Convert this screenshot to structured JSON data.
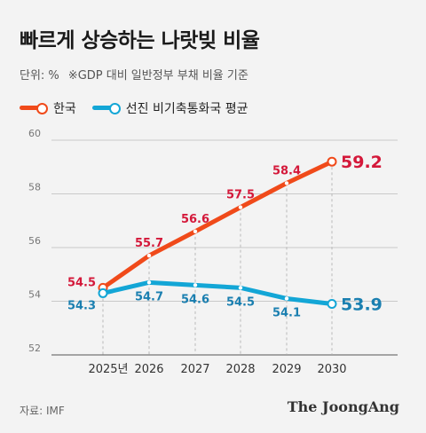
{
  "title": "빠르게 상승하는 나랏빚 비율",
  "unit_label": "단위: %",
  "note": "※GDP 대비 일반정부 부채 비율 기준",
  "source": "자료: IMF",
  "brand": "The JoongAng",
  "colors": {
    "korea": "#f04a1a",
    "advanced": "#13a6d6",
    "korea_label": "#d4183a",
    "advanced_label": "#1a7fb0",
    "grid": "#bbbbbb",
    "axis": "#888888"
  },
  "chart_data": {
    "type": "line",
    "x": [
      "2025년",
      "2026",
      "2027",
      "2028",
      "2029",
      "2030"
    ],
    "ylim": [
      52,
      60
    ],
    "yticks": [
      52,
      54,
      56,
      58,
      60
    ],
    "grid": true,
    "legend": "top-left",
    "series": [
      {
        "name": "한국",
        "values": [
          54.5,
          55.7,
          56.6,
          57.5,
          58.4,
          59.2
        ],
        "labels": [
          "54.5",
          "55.7",
          "56.6",
          "57.5",
          "58.4",
          "59.2"
        ]
      },
      {
        "name": "선진 비기축통화국 평균",
        "values": [
          54.3,
          54.7,
          54.6,
          54.5,
          54.1,
          53.9
        ],
        "labels": [
          "54.3",
          "54.7",
          "54.6",
          "54.5",
          "54.1",
          "53.9"
        ]
      }
    ]
  }
}
